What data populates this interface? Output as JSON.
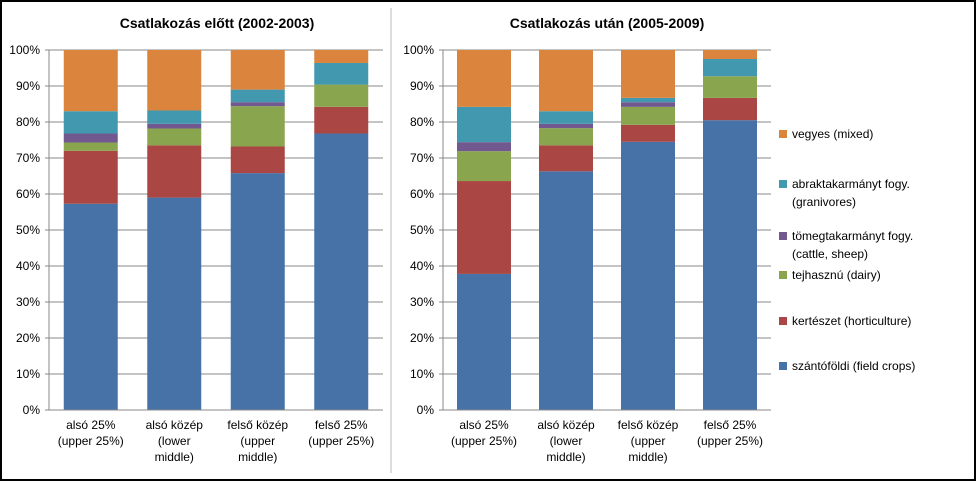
{
  "colors": {
    "szantofoldi": "#4672a8",
    "kerteszet": "#aa4644",
    "tejhasznu": "#89a54e",
    "tomegtakarmany": "#71588f",
    "abrak": "#4298af",
    "vegyes": "#db843d",
    "grid": "#888888",
    "axis": "#888888",
    "text": "#000000"
  },
  "chart_data": [
    {
      "type": "bar",
      "stacked": true,
      "percent": true,
      "title": "Csatlakozás előtt (2002-2003)",
      "categories": [
        [
          "alsó 25%",
          "(upper 25%)"
        ],
        [
          "alsó közép",
          "(lower",
          "middle)"
        ],
        [
          "felső közép",
          "(upper",
          "middle)"
        ],
        [
          "felső 25%",
          "(upper 25%)"
        ]
      ],
      "yticks": [
        "0%",
        "10%",
        "20%",
        "30%",
        "40%",
        "50%",
        "60%",
        "70%",
        "80%",
        "90%",
        "100%"
      ],
      "ylim": [
        0,
        100
      ],
      "grid": true,
      "series": [
        {
          "key": "szantofoldi",
          "values": [
            57.3,
            59.0,
            65.8,
            76.8
          ]
        },
        {
          "key": "kerteszet",
          "values": [
            14.7,
            14.5,
            7.4,
            7.4
          ]
        },
        {
          "key": "tejhasznu",
          "values": [
            2.3,
            4.7,
            11.2,
            6.2
          ]
        },
        {
          "key": "tomegtakarmany",
          "values": [
            2.5,
            1.3,
            1.1,
            0.0
          ]
        },
        {
          "key": "abrak",
          "values": [
            6.2,
            3.7,
            3.5,
            6.0
          ]
        },
        {
          "key": "vegyes",
          "values": [
            17.0,
            16.8,
            11.0,
            3.6
          ]
        }
      ]
    },
    {
      "type": "bar",
      "stacked": true,
      "percent": true,
      "title": "Csatlakozás után (2005-2009)",
      "categories": [
        [
          "alsó 25%",
          "(upper 25%)"
        ],
        [
          "alsó közép",
          "(lower",
          "middle)"
        ],
        [
          "felső közép",
          "(upper",
          "middle)"
        ],
        [
          "felső 25%",
          "(upper 25%)"
        ]
      ],
      "yticks": [
        "0%",
        "10%",
        "20%",
        "30%",
        "40%",
        "50%",
        "60%",
        "70%",
        "80%",
        "90%",
        "100%"
      ],
      "ylim": [
        0,
        100
      ],
      "grid": true,
      "series": [
        {
          "key": "szantofoldi",
          "values": [
            37.8,
            66.3,
            74.5,
            80.5
          ]
        },
        {
          "key": "kerteszet",
          "values": [
            25.8,
            7.2,
            4.7,
            6.2
          ]
        },
        {
          "key": "tejhasznu",
          "values": [
            8.3,
            4.8,
            5.0,
            6.0
          ]
        },
        {
          "key": "tomegtakarmany",
          "values": [
            2.5,
            1.2,
            1.3,
            0.0
          ]
        },
        {
          "key": "abrak",
          "values": [
            9.8,
            3.5,
            1.2,
            4.8
          ]
        },
        {
          "key": "vegyes",
          "values": [
            15.8,
            17.0,
            13.3,
            2.5
          ]
        }
      ]
    }
  ],
  "legend": {
    "position": "right",
    "items": [
      {
        "key": "vegyes",
        "lines": [
          "vegyes (mixed)"
        ]
      },
      {
        "key": "abrak",
        "lines": [
          "abraktakarmányt fogy.",
          "(granivores)"
        ]
      },
      {
        "key": "tomegtakarmany",
        "lines": [
          "tömegtakarmányt fogy.",
          "(cattle, sheep)"
        ]
      },
      {
        "key": "tejhasznu",
        "lines": [
          "tejhasznú (dairy)"
        ]
      },
      {
        "key": "kerteszet",
        "lines": [
          "kertészet (horticulture)"
        ]
      },
      {
        "key": "szantofoldi",
        "lines": [
          "szántóföldi (field crops)"
        ]
      }
    ]
  }
}
